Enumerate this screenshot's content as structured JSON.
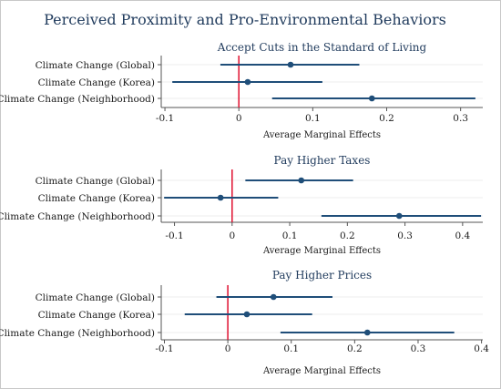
{
  "title": "Perceived Proximity and Pro-Environmental Behaviors",
  "colors": {
    "series": "#1f4e79",
    "reference_line": "#e0102f",
    "axis": "#555555",
    "background": "#ffffff"
  },
  "chart_data": [
    {
      "type": "scatter",
      "style": "coefficient plot with confidence intervals",
      "title": "Accept Cuts in the Standard of Living",
      "xlabel": "Average Marginal Effects",
      "categories": [
        "Climate Change (Global)",
        "Climate Change (Korea)",
        "Climate Change (Neighborhood)"
      ],
      "values": [
        0.07,
        0.012,
        0.18
      ],
      "ci_low": [
        -0.025,
        -0.09,
        0.045
      ],
      "ci_high": [
        0.163,
        0.113,
        0.32
      ],
      "xlim": [
        -0.105,
        0.33
      ],
      "xticks": [
        -0.1,
        0,
        0.1,
        0.2,
        0.3
      ],
      "xtick_labels": [
        "-0.1",
        "0",
        "0.1",
        "0.2",
        "0.3"
      ],
      "reference_line": 0,
      "grid": "horizontal"
    },
    {
      "type": "scatter",
      "style": "coefficient plot with confidence intervals",
      "title": "Pay Higher Taxes",
      "xlabel": "Average Marginal Effects",
      "categories": [
        "Climate Change (Global)",
        "Climate Change (Korea)",
        "Climate Change (Neighborhood)"
      ],
      "values": [
        0.12,
        -0.02,
        0.29
      ],
      "ci_low": [
        0.023,
        -0.118,
        0.155
      ],
      "ci_high": [
        0.21,
        0.08,
        0.432
      ],
      "xlim": [
        -0.123,
        0.435
      ],
      "xticks": [
        -0.1,
        0,
        0.1,
        0.2,
        0.3,
        0.4
      ],
      "xtick_labels": [
        "-0.1",
        "0",
        "0.1",
        "0.2",
        "0.3",
        "0.4"
      ],
      "reference_line": 0,
      "grid": "horizontal"
    },
    {
      "type": "scatter",
      "style": "coefficient plot with confidence intervals",
      "title": "Pay Higher Prices",
      "xlabel": "Average Marginal Effects",
      "categories": [
        "Climate Change (Global)",
        "Climate Change (Korea)",
        "Climate Change (Neighborhood)"
      ],
      "values": [
        0.072,
        0.03,
        0.22
      ],
      "ci_low": [
        -0.018,
        -0.068,
        0.083
      ],
      "ci_high": [
        0.165,
        0.133,
        0.357
      ],
      "xlim": [
        -0.105,
        0.402
      ],
      "xticks": [
        -0.1,
        0,
        0.1,
        0.2,
        0.3,
        0.4
      ],
      "xtick_labels": [
        "-0.1",
        "0",
        "0.1",
        "0.2",
        "0.3",
        "0.4"
      ],
      "reference_line": 0,
      "grid": "horizontal"
    }
  ]
}
